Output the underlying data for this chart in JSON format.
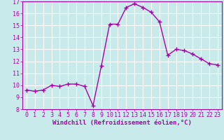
{
  "x": [
    0,
    1,
    2,
    3,
    4,
    5,
    6,
    7,
    8,
    9,
    10,
    11,
    12,
    13,
    14,
    15,
    16,
    17,
    18,
    19,
    20,
    21,
    22,
    23
  ],
  "y": [
    9.6,
    9.5,
    9.6,
    10.0,
    9.9,
    10.1,
    10.1,
    9.9,
    8.3,
    11.6,
    15.1,
    15.1,
    16.5,
    16.8,
    16.5,
    16.1,
    15.3,
    12.5,
    13.0,
    12.9,
    12.6,
    12.2,
    11.8,
    11.7
  ],
  "line_color": "#aa00aa",
  "marker": "+",
  "markersize": 4,
  "linewidth": 1.0,
  "xlim": [
    -0.5,
    23.5
  ],
  "ylim": [
    8,
    17
  ],
  "yticks": [
    8,
    9,
    10,
    11,
    12,
    13,
    14,
    15,
    16,
    17
  ],
  "xticks": [
    0,
    1,
    2,
    3,
    4,
    5,
    6,
    7,
    8,
    9,
    10,
    11,
    12,
    13,
    14,
    15,
    16,
    17,
    18,
    19,
    20,
    21,
    22,
    23
  ],
  "xlabel": "Windchill (Refroidissement éolien,°C)",
  "background_color": "#c8eaea",
  "grid_color": "#ffffff",
  "line_border_color": "#aa00aa",
  "tick_label_color": "#aa00aa",
  "xlabel_color": "#aa00aa",
  "xlabel_fontsize": 6.5,
  "tick_fontsize": 6.0,
  "monospace_font": "monospace"
}
